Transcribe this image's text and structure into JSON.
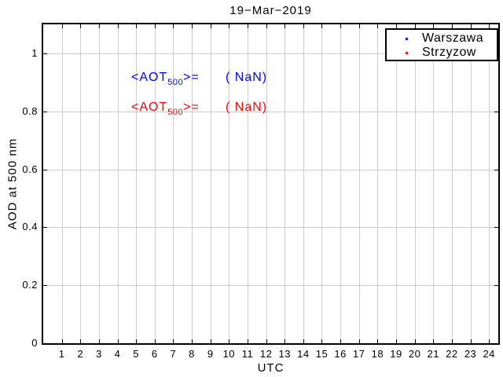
{
  "figure": {
    "title": "19−Mar−2019",
    "xlabel": "UTC",
    "ylabel": "AOD at 500 nm"
  },
  "chart_data": {
    "type": "scatter",
    "title": "19−Mar−2019",
    "xlabel": "UTC",
    "ylabel": "AOD at 500 nm",
    "xlim": [
      0,
      24.5
    ],
    "ylim": [
      0,
      1.1
    ],
    "xticks": [
      1,
      2,
      3,
      4,
      5,
      6,
      7,
      8,
      9,
      10,
      11,
      12,
      13,
      14,
      15,
      16,
      17,
      18,
      19,
      20,
      21,
      22,
      23,
      24
    ],
    "yticks": [
      0,
      0.2,
      0.4,
      0.6,
      0.8,
      1
    ],
    "ytick_labels": [
      "0",
      "0.2",
      "0.4",
      "0.6",
      "0.8",
      "1"
    ],
    "grid": true,
    "legend_position": "top-right",
    "series": [
      {
        "name": "Warszawa",
        "color": "#0000ff",
        "marker": "dot",
        "x": [],
        "y": []
      },
      {
        "name": "Strzyzow",
        "color": "#ff0000",
        "marker": "dot",
        "x": [],
        "y": []
      }
    ],
    "annotations": [
      {
        "prefix": "<AOT",
        "subscript": "500",
        "suffix": ">=",
        "value": "( NaN)",
        "color": "#0000ff",
        "y_data": 1.0
      },
      {
        "prefix": "<AOT",
        "subscript": "500",
        "suffix": ">=",
        "value": "( NaN)",
        "color": "#ff0000",
        "y_data": 0.9
      }
    ]
  },
  "legend": {
    "entries": [
      {
        "label": "Warszawa",
        "color": "#0000ff"
      },
      {
        "label": "Strzyzow",
        "color": "#ff0000"
      }
    ]
  },
  "colors": {
    "axis": "#000000",
    "grid": "#cccccc",
    "background": "#ffffff",
    "warszawa": "#0000ff",
    "strzyzow": "#ff0000"
  }
}
